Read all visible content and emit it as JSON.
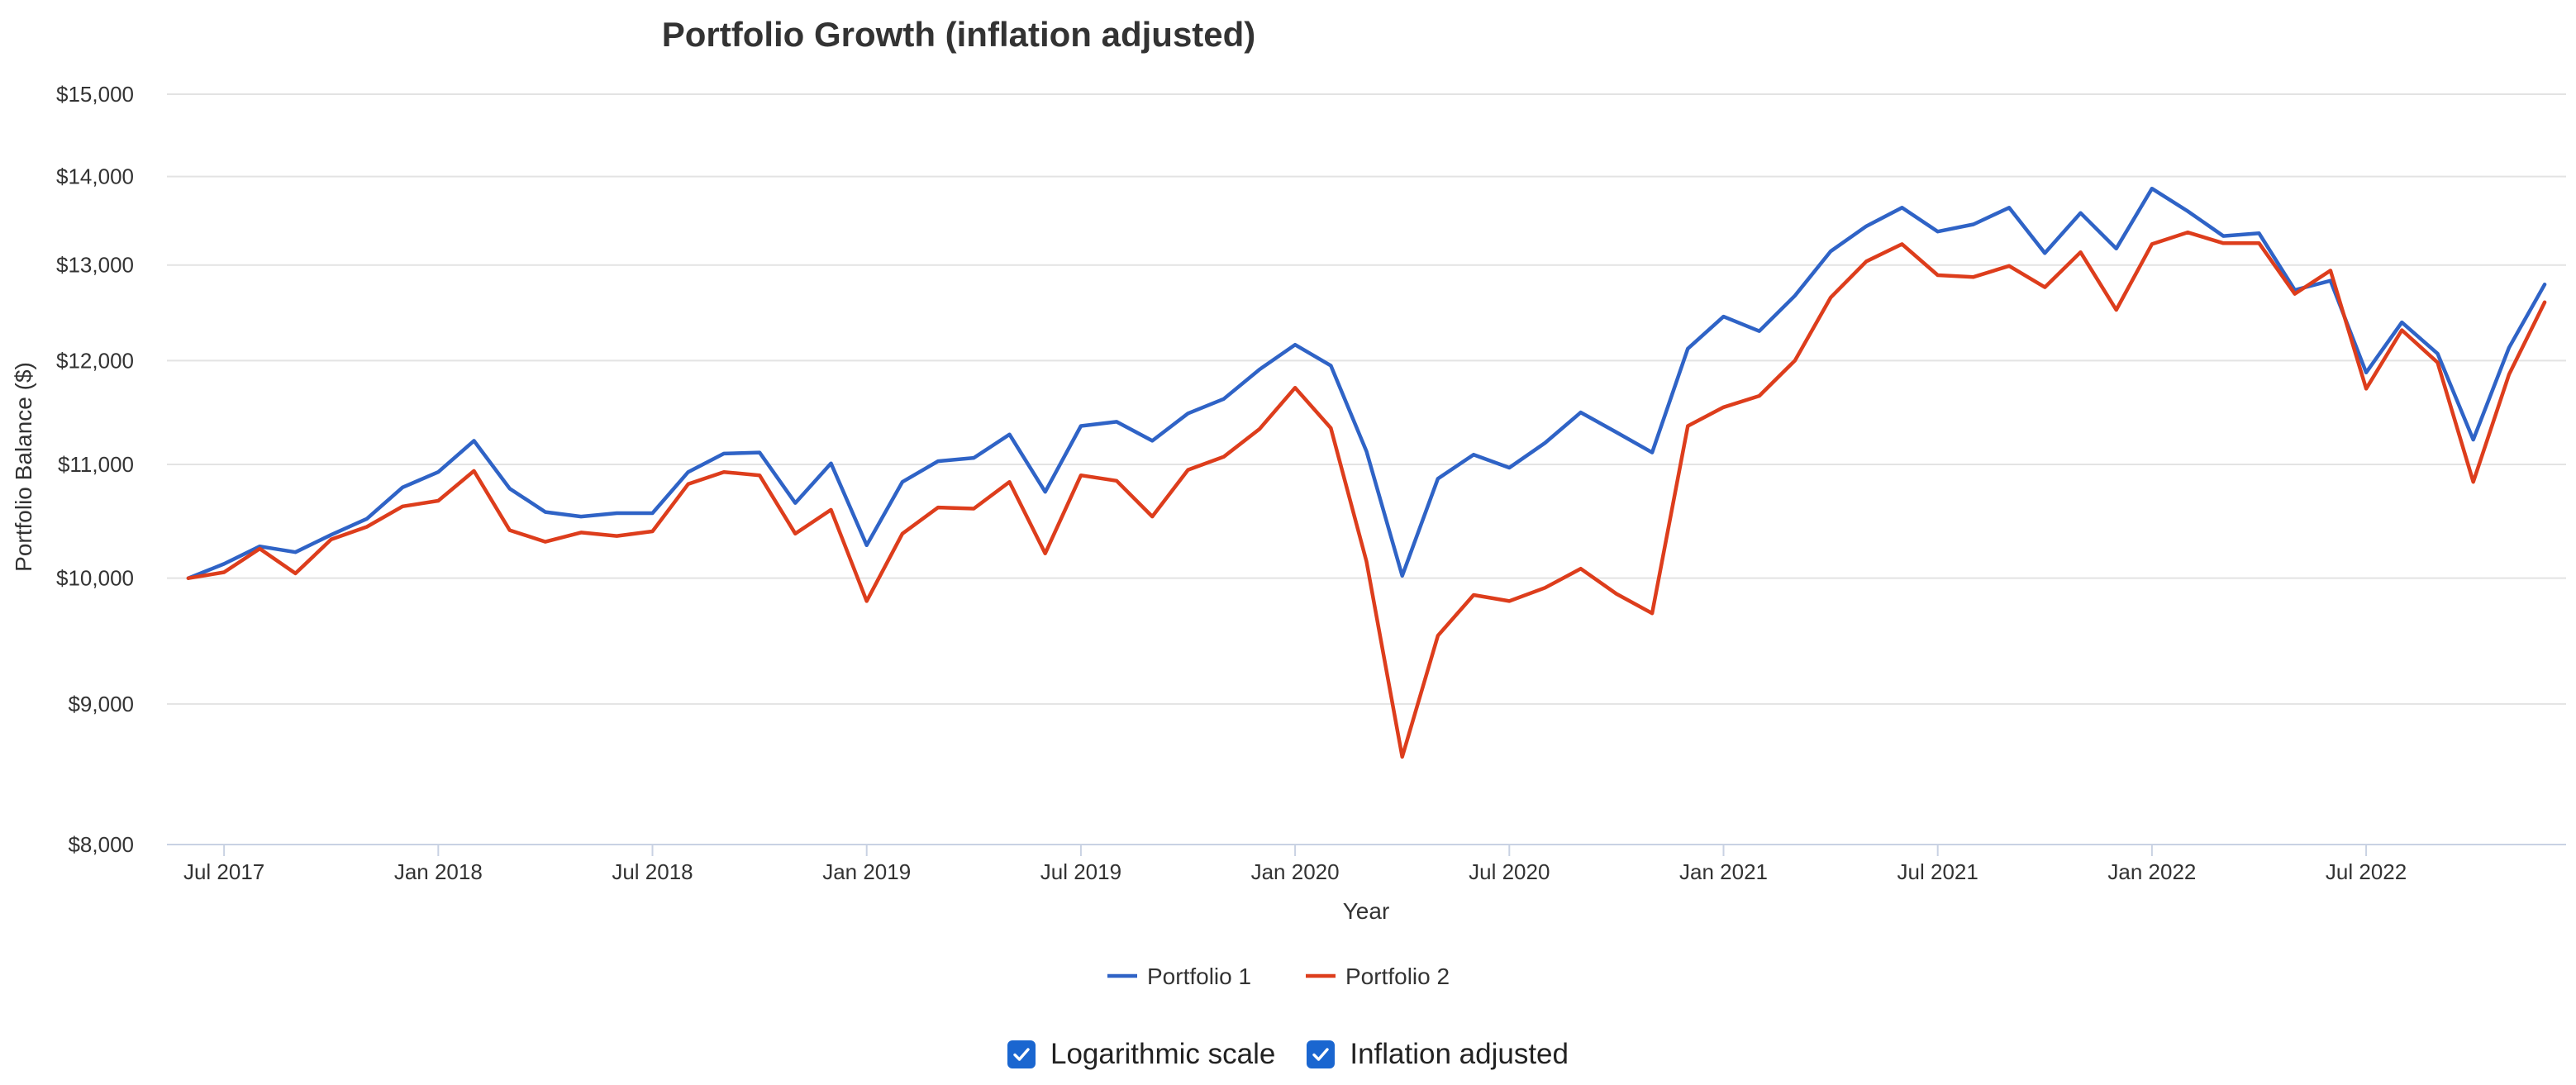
{
  "chart_data": {
    "type": "line",
    "title": "Portfolio Growth (inflation adjusted)",
    "xlabel": "Year",
    "ylabel": "Portfolio Balance ($)",
    "yscale": "log",
    "ylim": [
      8000,
      15000
    ],
    "y_ticks": [
      8000,
      9000,
      10000,
      11000,
      12000,
      13000,
      14000,
      15000
    ],
    "y_tick_labels": [
      "$8,000",
      "$9,000",
      "$10,000",
      "$11,000",
      "$12,000",
      "$13,000",
      "$14,000",
      "$15,000"
    ],
    "x_ticks": [
      {
        "label": "Jul 2017",
        "month": 1
      },
      {
        "label": "Jan 2018",
        "month": 7
      },
      {
        "label": "Jul 2018",
        "month": 13
      },
      {
        "label": "Jan 2019",
        "month": 19
      },
      {
        "label": "Jul 2019",
        "month": 25
      },
      {
        "label": "Jan 2020",
        "month": 31
      },
      {
        "label": "Jul 2020",
        "month": 37
      },
      {
        "label": "Jan 2021",
        "month": 43
      },
      {
        "label": "Jul 2021",
        "month": 49
      },
      {
        "label": "Jan 2022",
        "month": 55
      },
      {
        "label": "Jul 2022",
        "month": 61
      }
    ],
    "x_range": [
      -0.6,
      66.6
    ],
    "x": [
      "Jun 2017",
      "Jul 2017",
      "Aug 2017",
      "Sep 2017",
      "Oct 2017",
      "Nov 2017",
      "Dec 2017",
      "Jan 2018",
      "Feb 2018",
      "Mar 2018",
      "Apr 2018",
      "May 2018",
      "Jun 2018",
      "Jul 2018",
      "Aug 2018",
      "Sep 2018",
      "Oct 2018",
      "Nov 2018",
      "Dec 2018",
      "Jan 2019",
      "Feb 2019",
      "Mar 2019",
      "Apr 2019",
      "May 2019",
      "Jun 2019",
      "Jul 2019",
      "Aug 2019",
      "Sep 2019",
      "Oct 2019",
      "Nov 2019",
      "Dec 2019",
      "Jan 2020",
      "Feb 2020",
      "Mar 2020",
      "Apr 2020",
      "May 2020",
      "Jun 2020",
      "Jul 2020",
      "Aug 2020",
      "Sep 2020",
      "Oct 2020",
      "Nov 2020",
      "Dec 2020",
      "Jan 2021",
      "Feb 2021",
      "Mar 2021",
      "Apr 2021",
      "May 2021",
      "Jun 2021",
      "Jul 2021",
      "Aug 2021",
      "Sep 2021",
      "Oct 2021",
      "Nov 2021",
      "Dec 2021",
      "Jan 2022",
      "Feb 2022",
      "Mar 2022",
      "Apr 2022",
      "May 2022",
      "Jun 2022",
      "Jul 2022",
      "Aug 2022",
      "Sep 2022",
      "Oct 2022",
      "Nov 2022",
      "Dec 2022"
    ],
    "series": [
      {
        "name": "Portfolio 1",
        "color": "#2f63c6",
        "values": [
          10000,
          10120,
          10270,
          10220,
          10370,
          10510,
          10790,
          10930,
          11220,
          10780,
          10570,
          10530,
          10560,
          10560,
          10930,
          11100,
          11110,
          10650,
          11010,
          10280,
          10840,
          11030,
          11060,
          11280,
          10750,
          11360,
          11400,
          11220,
          11480,
          11620,
          11910,
          12160,
          11950,
          11120,
          10020,
          10870,
          11090,
          10970,
          11200,
          11490,
          11300,
          11110,
          12120,
          12450,
          12300,
          12670,
          13150,
          13430,
          13640,
          13370,
          13450,
          13640,
          13130,
          13580,
          13180,
          13860,
          13600,
          13320,
          13350,
          12730,
          12830,
          11880,
          12390,
          12070,
          11230,
          12130,
          12790
        ]
      },
      {
        "name": "Portfolio 2",
        "color": "#dd3d1c",
        "values": [
          10000,
          10050,
          10250,
          10040,
          10330,
          10440,
          10620,
          10670,
          10940,
          10410,
          10310,
          10390,
          10360,
          10400,
          10820,
          10930,
          10900,
          10380,
          10590,
          9810,
          10380,
          10610,
          10600,
          10840,
          10210,
          10900,
          10850,
          10530,
          10950,
          11070,
          11330,
          11730,
          11340,
          10140,
          8610,
          9530,
          9860,
          9810,
          9920,
          10080,
          9870,
          9710,
          11360,
          11540,
          11650,
          12000,
          12650,
          13040,
          13230,
          12890,
          12870,
          12990,
          12760,
          13140,
          12520,
          13230,
          13360,
          13240,
          13240,
          12690,
          12940,
          11720,
          12310,
          11980,
          10840,
          11860,
          12600
        ]
      }
    ]
  },
  "controls": {
    "log_scale_label": "Logarithmic scale",
    "inflation_label": "Inflation adjusted"
  }
}
